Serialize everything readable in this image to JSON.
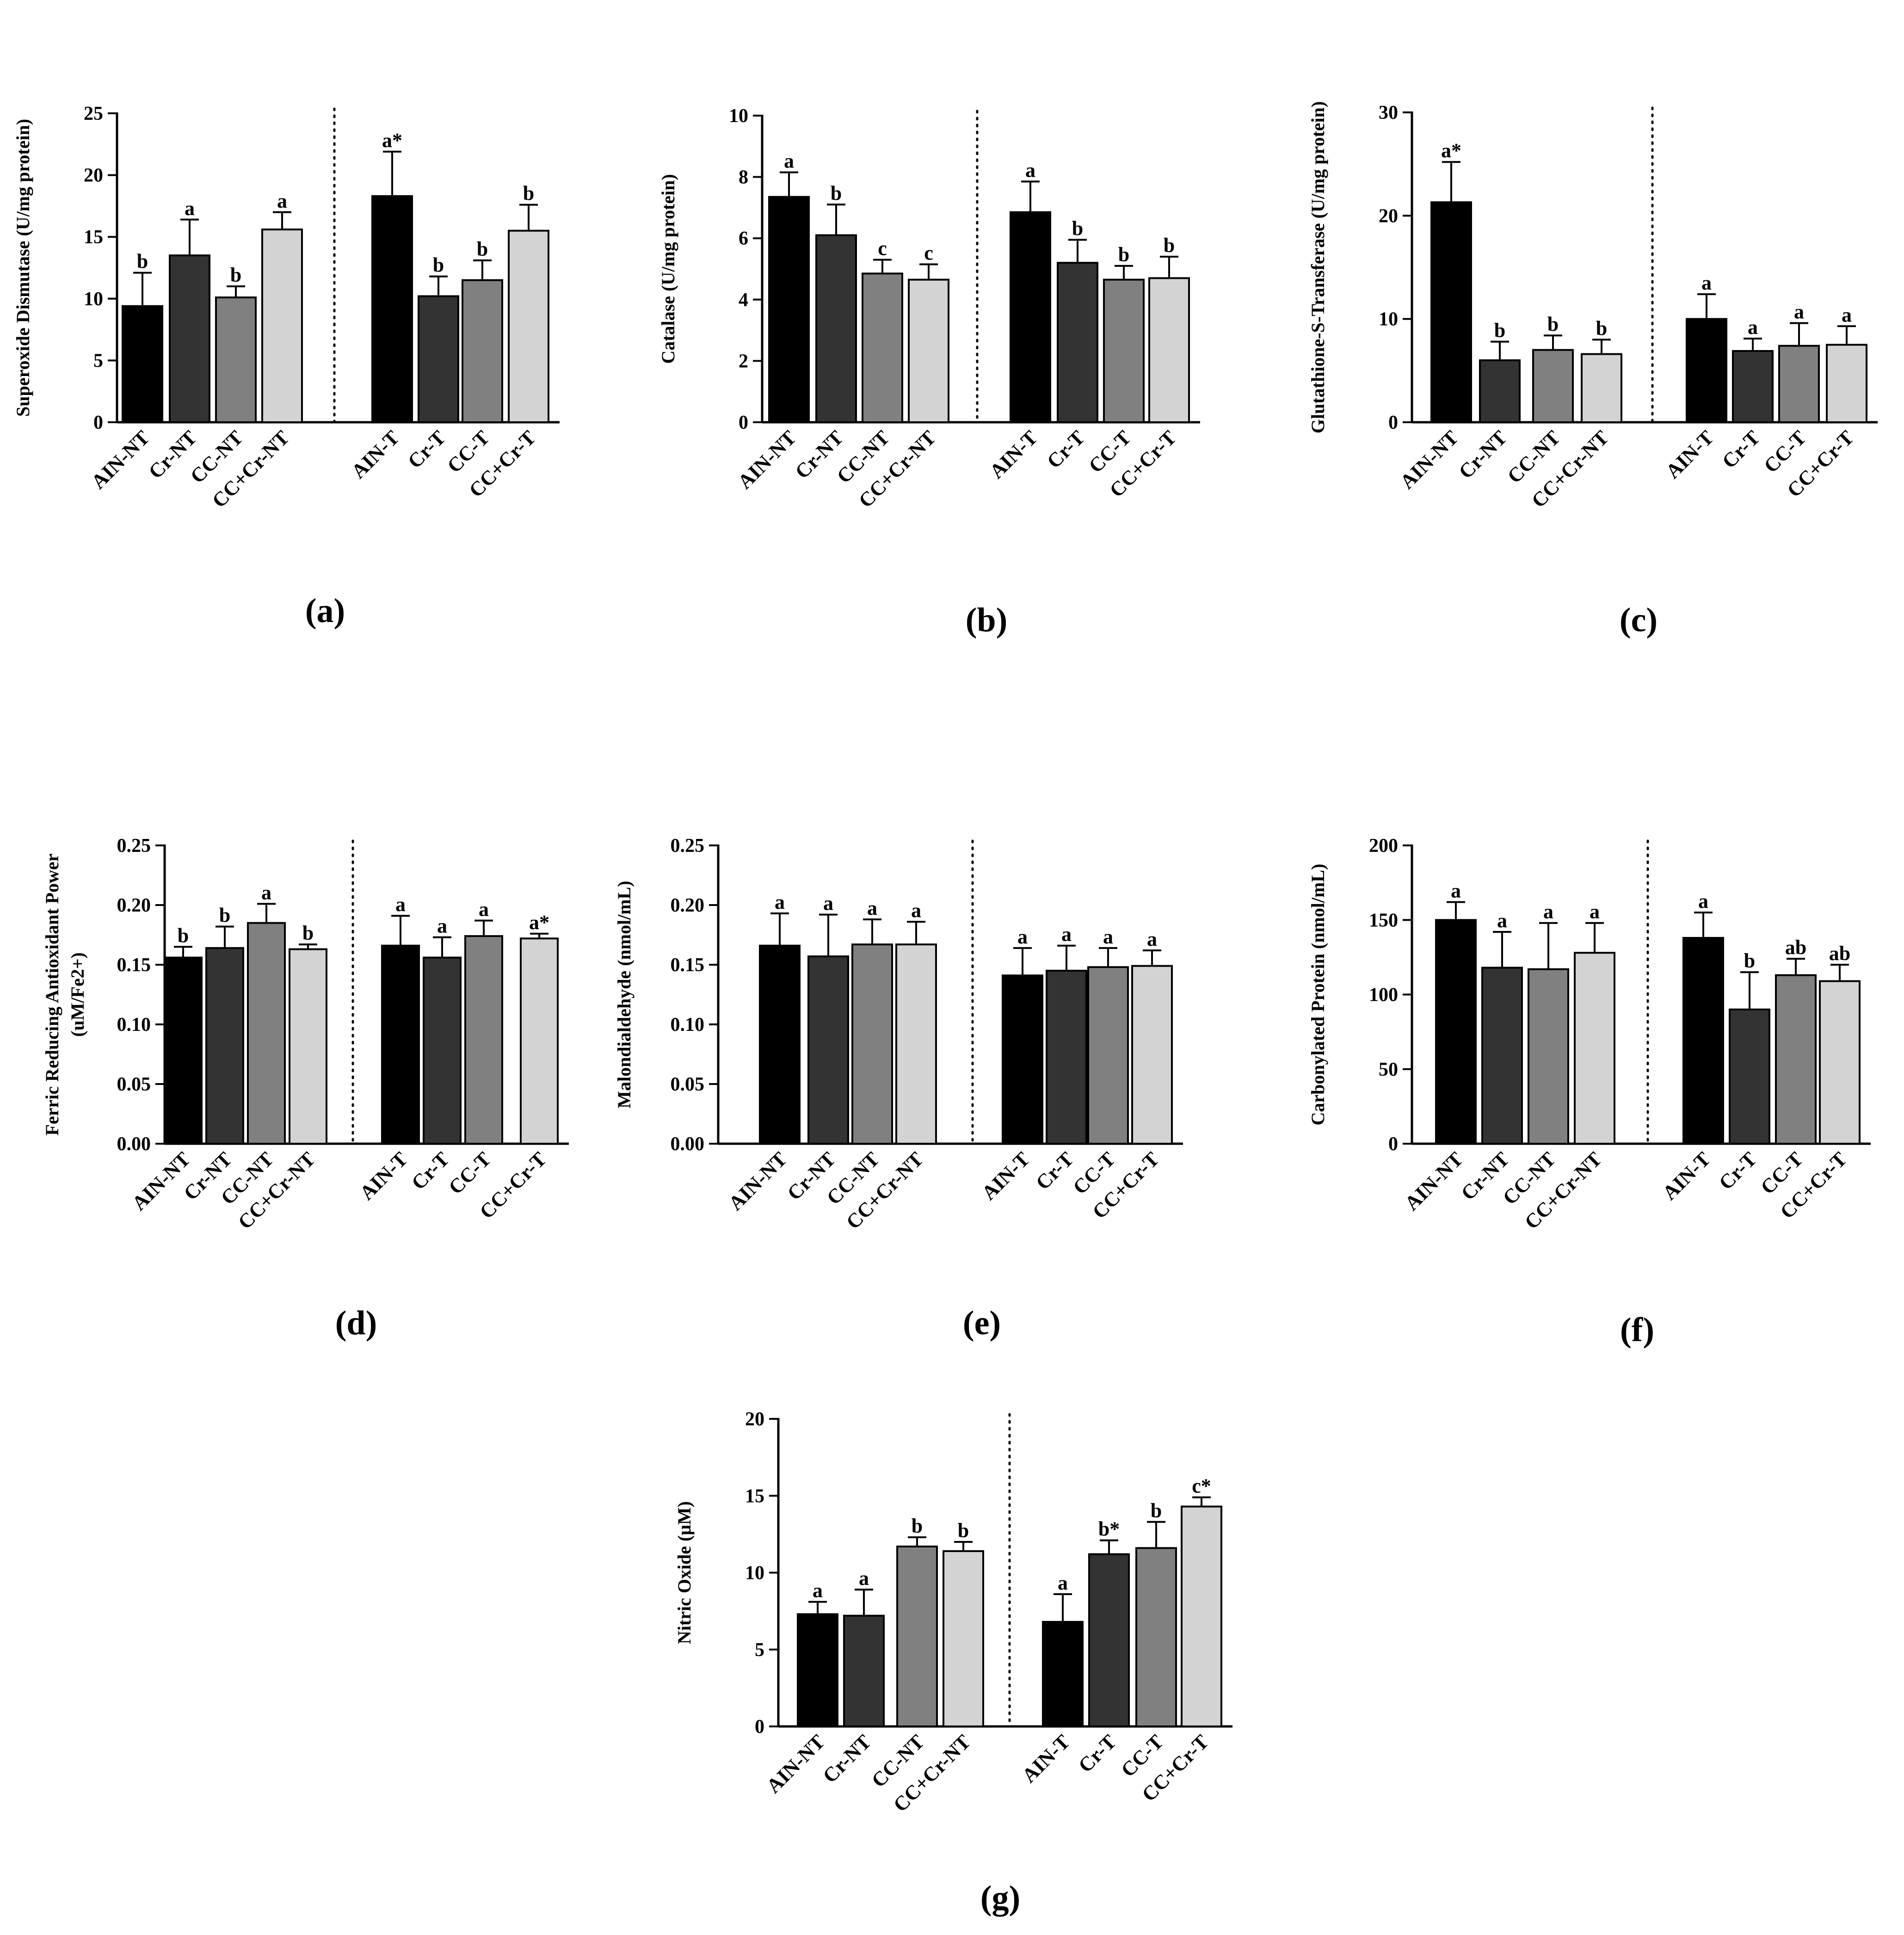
{
  "colors": {
    "fills": [
      "#000000",
      "#333333",
      "#808080",
      "#d3d3d3"
    ]
  },
  "chart_data": [
    {
      "panel": "(a)",
      "type": "bar",
      "ylabel": "Superoxide Dismutase (U/mg protein)",
      "ylim": [
        0,
        25
      ],
      "yticks": [
        0,
        5,
        10,
        15,
        20,
        25
      ],
      "tick_decimals": 0,
      "categories": [
        "AIN-NT",
        "Cr-NT",
        "CC-NT",
        "CC+Cr-NT",
        "AIN-T",
        "Cr-T",
        "CC-T",
        "CC+Cr-T"
      ],
      "values": [
        9.4,
        13.5,
        10.1,
        15.6,
        18.3,
        10.2,
        11.5,
        15.5
      ],
      "errors": [
        2.7,
        2.9,
        0.9,
        1.4,
        3.6,
        1.6,
        1.6,
        2.1
      ],
      "letters": [
        "b",
        "a",
        "b",
        "a",
        "a*",
        "b",
        "b",
        "b"
      ]
    },
    {
      "panel": "(b)",
      "type": "bar",
      "ylabel": "Catalase (U/mg protein)",
      "ylim": [
        0,
        10
      ],
      "yticks": [
        0,
        2,
        4,
        6,
        8,
        10
      ],
      "tick_decimals": 0,
      "categories": [
        "AIN-NT",
        "Cr-NT",
        "CC-NT",
        "CC+Cr-NT",
        "AIN-T",
        "Cr-T",
        "CC-T",
        "CC+Cr-T"
      ],
      "values": [
        7.35,
        6.1,
        4.85,
        4.65,
        6.85,
        5.2,
        4.65,
        4.7
      ],
      "errors": [
        0.8,
        1.0,
        0.45,
        0.5,
        1.0,
        0.75,
        0.45,
        0.7
      ],
      "letters": [
        "a",
        "b",
        "c",
        "c",
        "a",
        "b",
        "b",
        "b"
      ]
    },
    {
      "panel": "(c)",
      "type": "bar",
      "ylabel": "Glutathione-S-Transferase (U/mg protein)",
      "ylim": [
        0,
        30
      ],
      "yticks": [
        0,
        10,
        20,
        30
      ],
      "tick_decimals": 0,
      "categories": [
        "AIN-NT",
        "Cr-NT",
        "CC-NT",
        "CC+Cr-NT",
        "AIN-T",
        "Cr-T",
        "CC-T",
        "CC+Cr-T"
      ],
      "values": [
        21.3,
        6.0,
        7.0,
        6.6,
        10.0,
        6.9,
        7.4,
        7.5
      ],
      "errors": [
        3.9,
        1.8,
        1.4,
        1.4,
        2.4,
        1.2,
        2.2,
        1.8
      ],
      "letters": [
        "a*",
        "b",
        "b",
        "b",
        "a",
        "a",
        "a",
        "a"
      ]
    },
    {
      "panel": "(d)",
      "type": "bar",
      "ylabel": "Ferric Reducing Antioxidant Power",
      "ylabel2": "(uM/Fe2+)",
      "ylim": [
        0,
        0.25
      ],
      "yticks": [
        0.0,
        0.05,
        0.1,
        0.15,
        0.2,
        0.25
      ],
      "tick_decimals": 2,
      "categories": [
        "AIN-NT",
        "Cr-NT",
        "CC-NT",
        "CC+Cr-NT",
        "AIN-T",
        "Cr-T",
        "CC-T",
        "CC+Cr-T"
      ],
      "values": [
        0.156,
        0.164,
        0.185,
        0.163,
        0.166,
        0.156,
        0.174,
        0.172
      ],
      "errors": [
        0.009,
        0.018,
        0.016,
        0.004,
        0.025,
        0.017,
        0.013,
        0.004
      ],
      "letters": [
        "b",
        "b",
        "a",
        "b",
        "a",
        "a",
        "a",
        "a*"
      ]
    },
    {
      "panel": "(e)",
      "type": "bar",
      "ylabel": "Malondialdehyde (nmol/mL)",
      "ylim": [
        0,
        0.25
      ],
      "yticks": [
        0.0,
        0.05,
        0.1,
        0.15,
        0.2,
        0.25
      ],
      "tick_decimals": 2,
      "categories": [
        "AIN-NT",
        "Cr-NT",
        "CC-NT",
        "CC+Cr-NT",
        "AIN-T",
        "Cr-T",
        "CC-T",
        "CC+Cr-T"
      ],
      "values": [
        0.166,
        0.157,
        0.167,
        0.167,
        0.141,
        0.145,
        0.148,
        0.149
      ],
      "errors": [
        0.027,
        0.035,
        0.021,
        0.019,
        0.023,
        0.021,
        0.016,
        0.013
      ],
      "letters": [
        "a",
        "a",
        "a",
        "a",
        "a",
        "a",
        "a",
        "a"
      ]
    },
    {
      "panel": "(f)",
      "type": "bar",
      "ylabel": "Carbonylated Protein (nmol/mL)",
      "ylim": [
        0,
        200
      ],
      "yticks": [
        0,
        50,
        100,
        150,
        200
      ],
      "tick_decimals": 0,
      "categories": [
        "AIN-NT",
        "Cr-NT",
        "CC-NT",
        "CC+Cr-NT",
        "AIN-T",
        "Cr-T",
        "CC-T",
        "CC+Cr-T"
      ],
      "values": [
        150,
        118,
        117,
        128,
        138,
        90,
        113,
        109
      ],
      "errors": [
        12,
        24,
        31,
        20,
        17,
        25,
        11,
        11
      ],
      "letters": [
        "a",
        "a",
        "a",
        "a",
        "a",
        "b",
        "ab",
        "ab"
      ]
    },
    {
      "panel": "(g)",
      "type": "bar",
      "ylabel": "Nitric Oxide (μM)",
      "ylim": [
        0,
        20
      ],
      "yticks": [
        0,
        5,
        10,
        15,
        20
      ],
      "tick_decimals": 0,
      "categories": [
        "AIN-NT",
        "Cr-NT",
        "CC-NT",
        "CC+Cr-NT",
        "AIN-T",
        "Cr-T",
        "CC-T",
        "CC+Cr-T"
      ],
      "values": [
        7.3,
        7.2,
        11.7,
        11.4,
        6.8,
        11.2,
        11.6,
        14.3
      ],
      "errors": [
        0.8,
        1.7,
        0.6,
        0.6,
        1.8,
        0.9,
        1.7,
        0.6
      ],
      "letters": [
        "a",
        "a",
        "b",
        "b",
        "a",
        "b*",
        "b",
        "c*"
      ]
    }
  ]
}
